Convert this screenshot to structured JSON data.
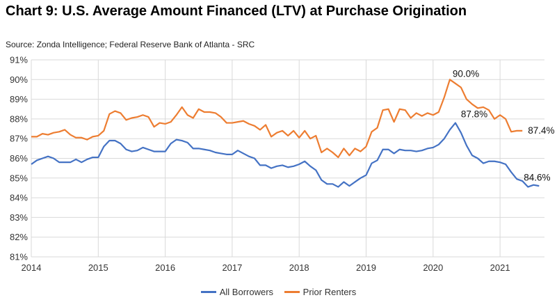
{
  "chart_data": {
    "type": "line",
    "title": "Chart 9: U.S. Average Amount Financed (LTV) at Purchase Origination",
    "source": "Source: Zonda Intelligence; Federal Reserve Bank of Atlanta - SRC",
    "xlabel": "",
    "ylabel": "",
    "x_start": "2014-01",
    "frequency": "monthly",
    "x_ticks": [
      "2014",
      "2015",
      "2016",
      "2017",
      "2018",
      "2019",
      "2020",
      "2021"
    ],
    "y_ticks": [
      "81%",
      "82%",
      "83%",
      "84%",
      "85%",
      "86%",
      "87%",
      "88%",
      "89%",
      "90%",
      "91%"
    ],
    "ylim": [
      81,
      91
    ],
    "grid": true,
    "legend": "bottom",
    "series": [
      {
        "name": "All Borrowers",
        "color": "#4472C4",
        "values": [
          85.7,
          85.9,
          86.0,
          86.1,
          86.0,
          85.8,
          85.8,
          85.8,
          85.95,
          85.8,
          85.95,
          86.05,
          86.05,
          86.6,
          86.9,
          86.9,
          86.75,
          86.45,
          86.35,
          86.4,
          86.55,
          86.45,
          86.35,
          86.35,
          86.35,
          86.75,
          86.95,
          86.9,
          86.8,
          86.5,
          86.5,
          86.45,
          86.4,
          86.3,
          86.25,
          86.2,
          86.2,
          86.4,
          86.25,
          86.1,
          86.0,
          85.65,
          85.65,
          85.5,
          85.6,
          85.65,
          85.55,
          85.6,
          85.7,
          85.85,
          85.6,
          85.4,
          84.9,
          84.7,
          84.7,
          84.55,
          84.8,
          84.6,
          84.8,
          85.0,
          85.15,
          85.75,
          85.9,
          86.45,
          86.45,
          86.25,
          86.45,
          86.4,
          86.4,
          86.35,
          86.4,
          86.5,
          86.55,
          86.7,
          87.0,
          87.45,
          87.8,
          87.3,
          86.65,
          86.15,
          86.0,
          85.75,
          85.85,
          85.85,
          85.8,
          85.7,
          85.3,
          84.95,
          84.85,
          84.55,
          84.65,
          84.6
        ]
      },
      {
        "name": "Prior Renters",
        "color": "#ED7D31",
        "values": [
          87.1,
          87.1,
          87.25,
          87.2,
          87.3,
          87.35,
          87.45,
          87.2,
          87.05,
          87.05,
          86.95,
          87.1,
          87.15,
          87.4,
          88.25,
          88.4,
          88.3,
          87.95,
          88.05,
          88.1,
          88.2,
          88.1,
          87.6,
          87.8,
          87.75,
          87.85,
          88.2,
          88.6,
          88.2,
          88.05,
          88.5,
          88.35,
          88.35,
          88.3,
          88.1,
          87.8,
          87.8,
          87.85,
          87.9,
          87.75,
          87.65,
          87.45,
          87.7,
          87.1,
          87.3,
          87.4,
          87.15,
          87.4,
          87.05,
          87.4,
          87.0,
          87.15,
          86.3,
          86.5,
          86.3,
          86.05,
          86.5,
          86.15,
          86.5,
          86.35,
          86.6,
          87.35,
          87.55,
          88.45,
          88.5,
          87.85,
          88.5,
          88.45,
          88.05,
          88.3,
          88.15,
          88.3,
          88.2,
          88.35,
          89.1,
          90.0,
          89.8,
          89.6,
          89.0,
          88.75,
          88.55,
          88.6,
          88.45,
          88.0,
          88.2,
          88.0,
          87.35,
          87.4,
          87.4
        ]
      }
    ],
    "annotations": [
      {
        "series": "Prior Renters",
        "month": "2020-04",
        "text": "90.0%"
      },
      {
        "series": "All Borrowers",
        "month": "2020-05",
        "text": "87.8%"
      },
      {
        "series": "Prior Renters",
        "month": "2021-05",
        "text": "87.4%"
      },
      {
        "series": "All Borrowers",
        "month": "2021-07",
        "text": "84.6%"
      }
    ]
  }
}
